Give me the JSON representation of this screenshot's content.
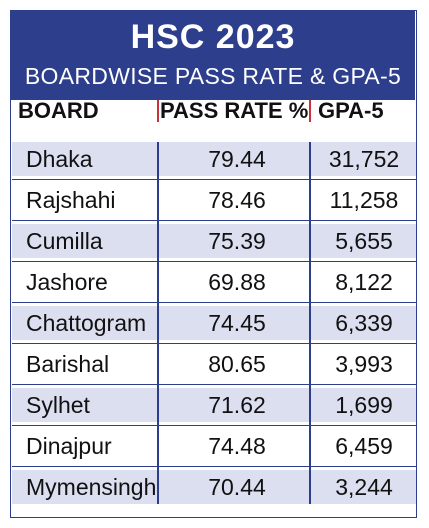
{
  "header": {
    "title": "HSC 2023",
    "subtitle": "BOARDWISE PASS RATE & GPA-5"
  },
  "columns": {
    "board": "BOARD",
    "pass_rate": "PASS RATE %",
    "gpa5": "GPA-5"
  },
  "colors": {
    "header_bg": "#2d3e8c",
    "row_shade": "#dcdff0",
    "divider_accent": "#c8323a"
  },
  "chart_data": {
    "type": "table",
    "title": "HSC 2023",
    "subtitle": "BOARDWISE PASS RATE & GPA-5",
    "columns": [
      "BOARD",
      "PASS RATE %",
      "GPA-5"
    ],
    "rows": [
      {
        "board": "Dhaka",
        "pass_rate": "79.44",
        "gpa5": "31,752"
      },
      {
        "board": "Rajshahi",
        "pass_rate": "78.46",
        "gpa5": "11,258"
      },
      {
        "board": "Cumilla",
        "pass_rate": "75.39",
        "gpa5": "5,655"
      },
      {
        "board": "Jashore",
        "pass_rate": "69.88",
        "gpa5": "8,122"
      },
      {
        "board": "Chattogram",
        "pass_rate": "74.45",
        "gpa5": "6,339"
      },
      {
        "board": "Barishal",
        "pass_rate": "80.65",
        "gpa5": "3,993"
      },
      {
        "board": "Sylhet",
        "pass_rate": "71.62",
        "gpa5": "1,699"
      },
      {
        "board": "Dinajpur",
        "pass_rate": "74.48",
        "gpa5": "6,459"
      },
      {
        "board": "Mymensingh",
        "pass_rate": "70.44",
        "gpa5": "3,244"
      }
    ]
  }
}
